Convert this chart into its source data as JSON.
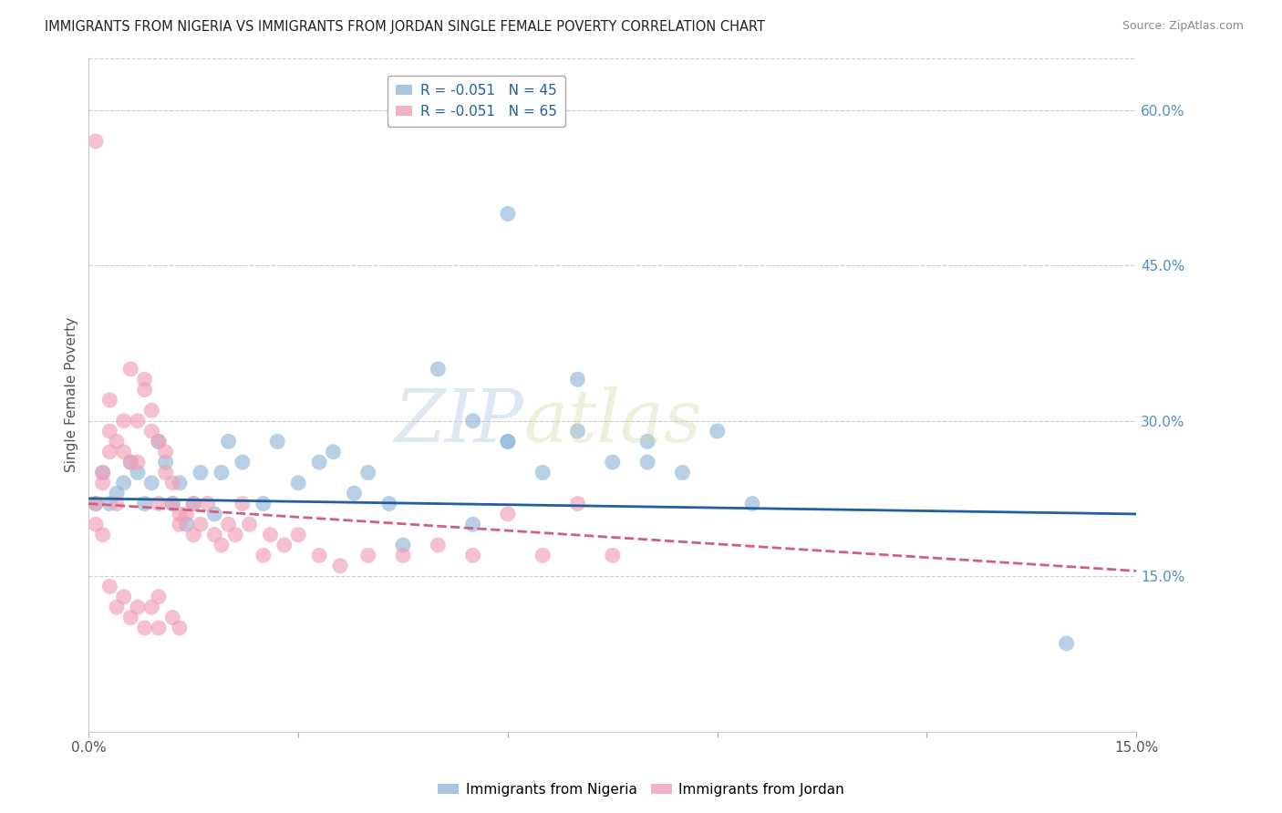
{
  "title": "IMMIGRANTS FROM NIGERIA VS IMMIGRANTS FROM JORDAN SINGLE FEMALE POVERTY CORRELATION CHART",
  "source": "Source: ZipAtlas.com",
  "ylabel": "Single Female Poverty",
  "xlim": [
    0.0,
    0.15
  ],
  "ylim": [
    0.0,
    0.65
  ],
  "y_ticks_right": [
    0.15,
    0.3,
    0.45,
    0.6
  ],
  "y_tick_labels_right": [
    "15.0%",
    "30.0%",
    "45.0%",
    "60.0%"
  ],
  "nigeria_color": "#92b8d8",
  "jordan_color": "#f0a0b8",
  "nigeria_line_color": "#2060a0",
  "jordan_line_color": "#d06080",
  "nigeria_label": "Immigrants from Nigeria",
  "jordan_label": "Immigrants from Jordan",
  "background_color": "#ffffff",
  "right_axis_color": "#5090c8",
  "nigeria_x": [
    0.001,
    0.002,
    0.003,
    0.004,
    0.005,
    0.006,
    0.007,
    0.008,
    0.009,
    0.01,
    0.011,
    0.012,
    0.013,
    0.014,
    0.015,
    0.016,
    0.018,
    0.019,
    0.02,
    0.022,
    0.025,
    0.027,
    0.03,
    0.033,
    0.035,
    0.038,
    0.04,
    0.043,
    0.05,
    0.055,
    0.06,
    0.065,
    0.07,
    0.075,
    0.08,
    0.085,
    0.09,
    0.095,
    0.07,
    0.08,
    0.06,
    0.055,
    0.045,
    0.14,
    0.06
  ],
  "nigeria_y": [
    0.22,
    0.25,
    0.22,
    0.23,
    0.24,
    0.26,
    0.25,
    0.22,
    0.24,
    0.28,
    0.26,
    0.22,
    0.24,
    0.2,
    0.22,
    0.25,
    0.21,
    0.25,
    0.28,
    0.26,
    0.22,
    0.28,
    0.24,
    0.26,
    0.27,
    0.23,
    0.25,
    0.22,
    0.35,
    0.3,
    0.28,
    0.25,
    0.34,
    0.26,
    0.28,
    0.25,
    0.29,
    0.22,
    0.29,
    0.26,
    0.28,
    0.2,
    0.18,
    0.085,
    0.5
  ],
  "jordan_x": [
    0.001,
    0.001,
    0.002,
    0.002,
    0.003,
    0.003,
    0.003,
    0.004,
    0.004,
    0.005,
    0.005,
    0.006,
    0.006,
    0.007,
    0.007,
    0.008,
    0.008,
    0.009,
    0.009,
    0.01,
    0.01,
    0.011,
    0.011,
    0.012,
    0.012,
    0.013,
    0.013,
    0.014,
    0.015,
    0.015,
    0.016,
    0.017,
    0.018,
    0.019,
    0.02,
    0.021,
    0.022,
    0.023,
    0.025,
    0.026,
    0.028,
    0.03,
    0.033,
    0.036,
    0.04,
    0.045,
    0.05,
    0.055,
    0.06,
    0.065,
    0.07,
    0.075,
    0.001,
    0.002,
    0.003,
    0.004,
    0.005,
    0.006,
    0.007,
    0.008,
    0.009,
    0.01,
    0.01,
    0.012,
    0.013
  ],
  "jordan_y": [
    0.22,
    0.2,
    0.25,
    0.24,
    0.27,
    0.29,
    0.32,
    0.22,
    0.28,
    0.27,
    0.3,
    0.26,
    0.35,
    0.3,
    0.26,
    0.34,
    0.33,
    0.29,
    0.31,
    0.28,
    0.22,
    0.27,
    0.25,
    0.24,
    0.22,
    0.21,
    0.2,
    0.21,
    0.22,
    0.19,
    0.2,
    0.22,
    0.19,
    0.18,
    0.2,
    0.19,
    0.22,
    0.2,
    0.17,
    0.19,
    0.18,
    0.19,
    0.17,
    0.16,
    0.17,
    0.17,
    0.18,
    0.17,
    0.21,
    0.17,
    0.22,
    0.17,
    0.57,
    0.19,
    0.14,
    0.12,
    0.13,
    0.11,
    0.12,
    0.1,
    0.12,
    0.13,
    0.1,
    0.11,
    0.1
  ],
  "watermark_zip": "ZIP",
  "watermark_atlas": "atlas",
  "legend_label_n": "R = -0.051   N = 45",
  "legend_label_j": "R = -0.051   N = 65"
}
